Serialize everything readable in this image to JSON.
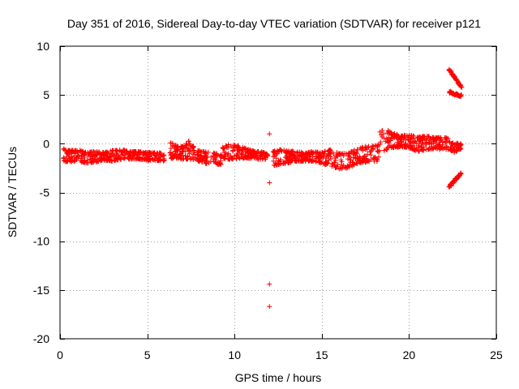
{
  "chart_data": {
    "type": "scatter",
    "title": "Day 351 of 2016, Sidereal Day-to-day VTEC variation (SDTVAR) for receiver p121",
    "xlabel": "GPS time / hours",
    "ylabel": "SDTVAR / TECUs",
    "xlim": [
      0,
      25
    ],
    "ylim": [
      -20,
      10
    ],
    "xticks": [
      0,
      5,
      10,
      15,
      20,
      25
    ],
    "xtick_labels": [
      "0",
      "5",
      "10",
      "15",
      "20",
      "25"
    ],
    "yticks": [
      -20,
      -15,
      -10,
      -5,
      0,
      5,
      10
    ],
    "ytick_labels": [
      "-20",
      "-15",
      "-10",
      "-5",
      "0",
      "5",
      "10"
    ],
    "grid": true,
    "marker": "plus",
    "color": "#ff0000",
    "bands": [
      {
        "x": [
          0.2,
          0.5,
          1.0,
          1.5,
          2.0,
          2.5,
          3.0,
          3.5,
          4.0,
          4.5,
          5.0,
          5.5,
          6.0
        ],
        "upper": [
          -0.5,
          -0.7,
          -0.6,
          -0.9,
          -0.8,
          -0.9,
          -0.7,
          -0.6,
          -0.8,
          -0.8,
          -0.9,
          -0.9,
          -1.0
        ],
        "lower": [
          -1.8,
          -1.9,
          -1.8,
          -2.0,
          -1.9,
          -1.7,
          -1.8,
          -1.6,
          -1.6,
          -1.6,
          -1.7,
          -1.7,
          -1.8
        ]
      },
      {
        "x": [
          6.3,
          6.7,
          7.0,
          7.4,
          7.8,
          8.2,
          8.6,
          9.0,
          9.3
        ],
        "upper": [
          0.2,
          -0.2,
          -0.3,
          0.3,
          -0.6,
          -0.8,
          -0.9,
          -1.0,
          -1.1
        ],
        "lower": [
          -1.5,
          -1.5,
          -1.6,
          -1.6,
          -1.8,
          -2.0,
          -2.1,
          -2.1,
          -2.2
        ]
      },
      {
        "x": [
          9.3,
          9.6,
          10.0,
          10.4,
          10.8,
          11.2,
          11.6,
          11.9
        ],
        "upper": [
          -0.3,
          -0.1,
          -0.1,
          -0.3,
          -0.6,
          -0.8,
          -0.8,
          -1.1
        ],
        "lower": [
          -1.5,
          -1.6,
          -1.6,
          -1.5,
          -1.5,
          -1.6,
          -1.6,
          -1.6
        ]
      },
      {
        "x": [
          12.2,
          12.6,
          13.0,
          13.5,
          14.0,
          14.5,
          15.0,
          15.5,
          16.0,
          16.5,
          17.0,
          17.5,
          18.0,
          18.3
        ],
        "upper": [
          -0.8,
          -0.6,
          -0.7,
          -0.8,
          -0.9,
          -0.8,
          -0.9,
          -0.6,
          -1.0,
          -1.0,
          -0.5,
          -0.3,
          -0.2,
          -0.1
        ],
        "lower": [
          -2.3,
          -2.1,
          -2.0,
          -1.8,
          -1.8,
          -1.8,
          -2.0,
          -2.3,
          -2.6,
          -2.5,
          -2.1,
          -1.9,
          -1.8,
          -1.8
        ]
      },
      {
        "x": [
          18.3,
          18.6,
          19.0,
          19.5,
          20.0,
          20.5,
          21.0,
          21.5,
          22.0,
          22.3
        ],
        "upper": [
          1.2,
          1.5,
          1.2,
          0.8,
          0.9,
          0.7,
          0.8,
          0.6,
          0.7,
          0.5
        ],
        "lower": [
          -0.6,
          -0.7,
          -0.5,
          -0.3,
          -0.4,
          -0.8,
          -0.6,
          -0.5,
          -0.7,
          -0.6
        ]
      },
      {
        "x": [
          22.3,
          22.6,
          23.0
        ],
        "upper": [
          0.2,
          0.1,
          0.0
        ],
        "lower": [
          -0.6,
          -0.9,
          -0.5
        ]
      }
    ],
    "segments": [
      {
        "x0": 22.3,
        "y0": 7.6,
        "x1": 23.0,
        "y1": 5.8
      },
      {
        "x0": 22.3,
        "y0": 5.3,
        "x1": 23.0,
        "y1": 4.9
      },
      {
        "x0": 22.3,
        "y0": -4.4,
        "x1": 23.0,
        "y1": -3.0
      }
    ],
    "outliers": [
      {
        "x": 12.0,
        "y": 1.0
      },
      {
        "x": 12.0,
        "y": -4.0
      },
      {
        "x": 12.0,
        "y": -14.4
      },
      {
        "x": 12.0,
        "y": -16.7
      }
    ]
  }
}
